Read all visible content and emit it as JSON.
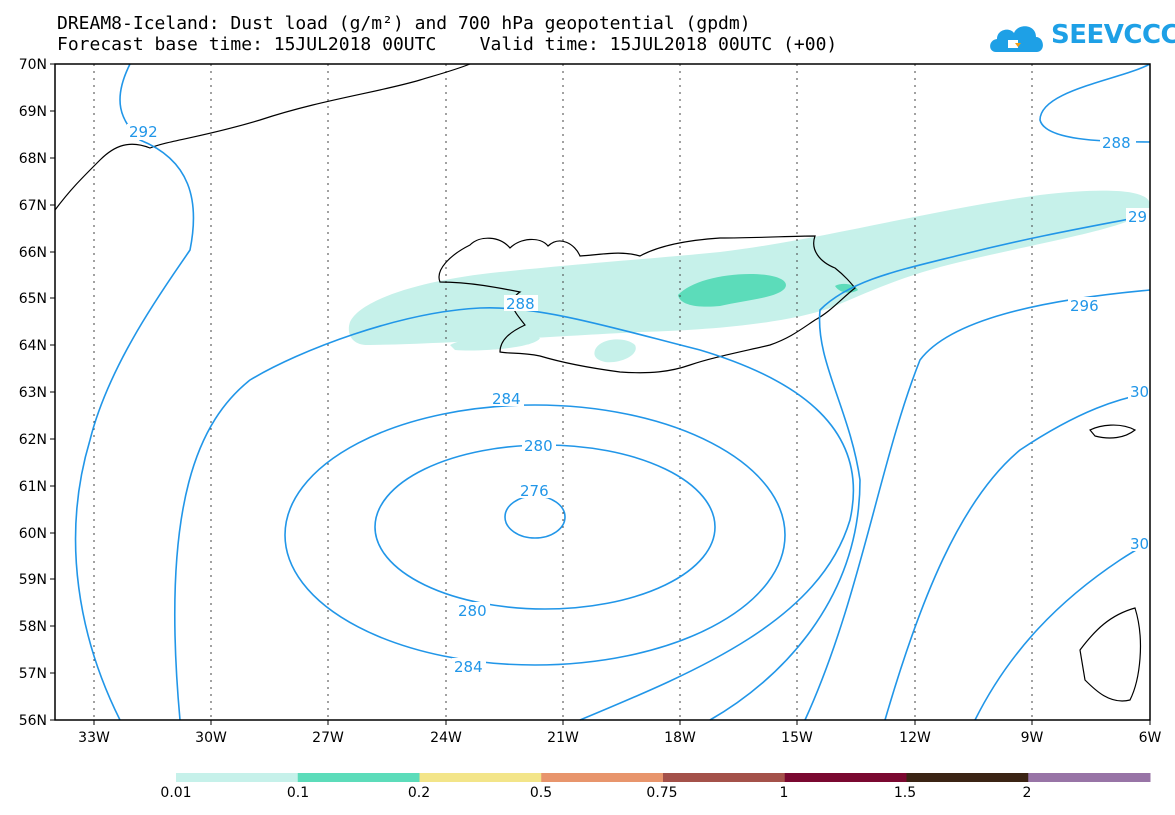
{
  "title": {
    "line1": "DREAM8-Iceland: Dust load (g/m²) and 700 hPa geopotential (gpdm)",
    "line2": "Forecast base time: 15JUL2018 00UTC    Valid time: 15JUL2018 00UTC (+00)"
  },
  "logo": {
    "text": "SEEVCCC",
    "icon": "cloud-logo-icon",
    "color": "#1ea0e6"
  },
  "axes": {
    "lat_labels": [
      "70N",
      "69N",
      "68N",
      "67N",
      "66N",
      "65N",
      "64N",
      "63N",
      "62N",
      "61N",
      "60N",
      "59N",
      "58N",
      "57N",
      "56N"
    ],
    "lon_labels": [
      "33W",
      "30W",
      "27W",
      "24W",
      "21W",
      "18W",
      "15W",
      "12W",
      "9W",
      "6W"
    ]
  },
  "contours": {
    "color": "#2196e8",
    "labels": [
      "292",
      "288",
      "288",
      "284",
      "280",
      "276",
      "280",
      "284",
      "296",
      "29",
      "30",
      "30"
    ]
  },
  "dust": {
    "colors": {
      "light": "#c6f1ea",
      "medium": "#5cdcba"
    }
  },
  "colorbar": {
    "colors": [
      "#c6f1ea",
      "#5cdcba",
      "#f3e589",
      "#e8956c",
      "#a4514a",
      "#7a0830",
      "#3b2414",
      "#9874a6"
    ],
    "labels": [
      "0.01",
      "0.1",
      "0.2",
      "0.5",
      "0.75",
      "1",
      "1.5",
      "2"
    ]
  }
}
